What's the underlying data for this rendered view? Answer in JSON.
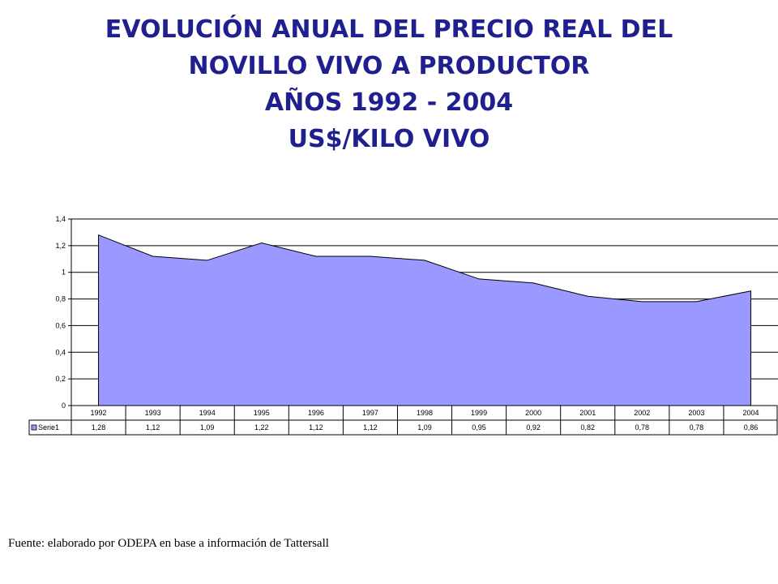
{
  "title_lines": [
    "EVOLUCIÓN ANUAL DEL PRECIO REAL DEL",
    "NOVILLO VIVO A PRODUCTOR",
    "AÑOS 1992 - 2004",
    "US$/KILO VIVO"
  ],
  "source": "Fuente: elaborado por ODEPA en base a información de Tattersall",
  "chart_data": {
    "type": "area",
    "categories": [
      "1992",
      "1993",
      "1994",
      "1995",
      "1996",
      "1997",
      "1998",
      "1999",
      "2000",
      "2001",
      "2002",
      "2003",
      "2004"
    ],
    "series": [
      {
        "name": "Serie1",
        "values": [
          1.28,
          1.12,
          1.09,
          1.22,
          1.12,
          1.12,
          1.09,
          0.95,
          0.92,
          0.82,
          0.78,
          0.78,
          0.86
        ],
        "value_labels": [
          "1,28",
          "1,12",
          "1,09",
          "1,22",
          "1,12",
          "1,12",
          "1,09",
          "0,95",
          "0,92",
          "0,82",
          "0,78",
          "0,78",
          "0,86"
        ],
        "color": "#9999ff"
      }
    ],
    "yticks": [
      {
        "value": 0,
        "label": "0"
      },
      {
        "value": 0.2,
        "label": "0,2"
      },
      {
        "value": 0.4,
        "label": "0,4"
      },
      {
        "value": 0.6,
        "label": "0,6"
      },
      {
        "value": 0.8,
        "label": "0,8"
      },
      {
        "value": 1,
        "label": "1"
      },
      {
        "value": 1.2,
        "label": "1,2"
      },
      {
        "value": 1.4,
        "label": "1,4"
      }
    ],
    "ylim": [
      0,
      1.4
    ],
    "grid": true,
    "data_table": true
  }
}
